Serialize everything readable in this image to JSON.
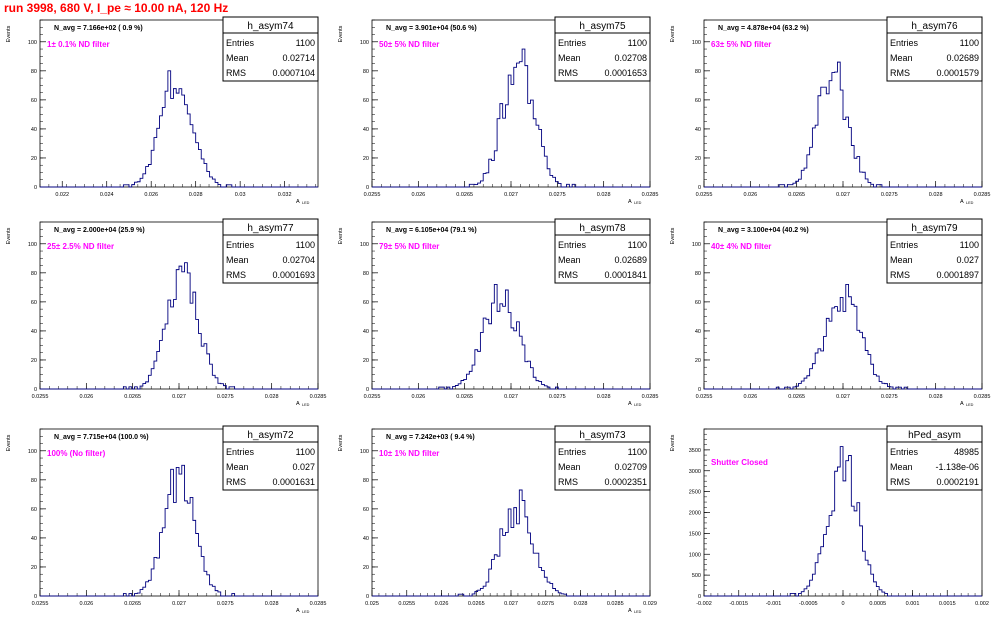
{
  "page_title": "run 3998,   680 V, I_pe ≈ 10.00 nA, 120 Hz",
  "chart_data": [
    {
      "type": "bar",
      "name": "h_asym74",
      "navg": "N_avg = 7.166e+02 ( 0.9 %)",
      "filter": "1± 0.1% ND filter",
      "stats": {
        "Entries": "1100",
        "Mean": "0.02714",
        "RMS": "0.0007104"
      },
      "ylabel": "Events",
      "xlabel": "A_LED",
      "xlim": [
        0.021,
        0.0335
      ],
      "ylim": [
        0,
        115
      ],
      "yticks": [
        0,
        20,
        40,
        60,
        80,
        100
      ],
      "xticks": [
        0.022,
        0.024,
        0.026,
        0.028,
        0.03,
        0.032
      ],
      "xtick_labels": [
        "0.022",
        "0.024",
        "0.026",
        "0.028",
        "0.03",
        "0.032"
      ],
      "values": [
        {
          "center": 0.02714,
          "sigma": 0.00071,
          "peak": 80
        }
      ]
    },
    {
      "type": "bar",
      "name": "h_asym75",
      "navg": "N_avg = 3.901e+04 (50.6 %)",
      "filter": "50± 5% ND filter",
      "stats": {
        "Entries": "1100",
        "Mean": "0.02708",
        "RMS": "0.0001653"
      },
      "ylabel": "Events",
      "xlabel": "A_LED",
      "xlim": [
        0.0255,
        0.0285
      ],
      "ylim": [
        0,
        115
      ],
      "yticks": [
        0,
        20,
        40,
        60,
        80,
        100
      ],
      "xticks": [
        0.0255,
        0.026,
        0.0265,
        0.027,
        0.0275,
        0.028,
        0.0285
      ],
      "xtick_labels": [
        "0.0255",
        "0.026",
        "0.0265",
        "0.027",
        "0.0275",
        "0.028",
        "0.0285"
      ],
      "values": [
        {
          "center": 0.02708,
          "sigma": 0.000165,
          "peak": 95
        }
      ]
    },
    {
      "type": "bar",
      "name": "h_asym76",
      "navg": "N_avg = 4.878e+04 (63.2 %)",
      "filter": "63± 5% ND filter",
      "stats": {
        "Entries": "1100",
        "Mean": "0.02689",
        "RMS": "0.0001579"
      },
      "ylabel": "Events",
      "xlabel": "A_LED",
      "xlim": [
        0.0255,
        0.0285
      ],
      "ylim": [
        0,
        115
      ],
      "yticks": [
        0,
        20,
        40,
        60,
        80,
        100
      ],
      "xticks": [
        0.0255,
        0.026,
        0.0265,
        0.027,
        0.0275,
        0.028,
        0.0285
      ],
      "xtick_labels": [
        "0.0255",
        "0.026",
        "0.0265",
        "0.027",
        "0.0275",
        "0.028",
        "0.0285"
      ],
      "values": [
        {
          "center": 0.02689,
          "sigma": 0.000158,
          "peak": 86
        }
      ]
    },
    {
      "type": "bar",
      "name": "h_asym77",
      "navg": "N_avg = 2.000e+04 (25.9 %)",
      "filter": "25± 2.5% ND filter",
      "stats": {
        "Entries": "1100",
        "Mean": "0.02704",
        "RMS": "0.0001693"
      },
      "ylabel": "Events",
      "xlabel": "A_LED",
      "xlim": [
        0.0255,
        0.0285
      ],
      "ylim": [
        0,
        115
      ],
      "yticks": [
        0,
        20,
        40,
        60,
        80,
        100
      ],
      "xticks": [
        0.0255,
        0.026,
        0.0265,
        0.027,
        0.0275,
        0.028,
        0.0285
      ],
      "xtick_labels": [
        "0.0255",
        "0.026",
        "0.0265",
        "0.027",
        "0.0275",
        "0.028",
        "0.0285"
      ],
      "values": [
        {
          "center": 0.02704,
          "sigma": 0.000169,
          "peak": 87
        }
      ]
    },
    {
      "type": "bar",
      "name": "h_asym78",
      "navg": "N_avg = 6.105e+04 (79.1 %)",
      "filter": "79± 5% ND filter",
      "stats": {
        "Entries": "1100",
        "Mean": "0.02689",
        "RMS": "0.0001841"
      },
      "ylabel": "Events",
      "xlabel": "A_LED",
      "xlim": [
        0.0255,
        0.0285
      ],
      "ylim": [
        0,
        115
      ],
      "yticks": [
        0,
        20,
        40,
        60,
        80,
        100
      ],
      "xticks": [
        0.0255,
        0.026,
        0.0265,
        0.027,
        0.0275,
        0.028,
        0.0285
      ],
      "xtick_labels": [
        "0.0255",
        "0.026",
        "0.0265",
        "0.027",
        "0.0275",
        "0.028",
        "0.0285"
      ],
      "values": [
        {
          "center": 0.02689,
          "sigma": 0.000184,
          "peak": 72
        }
      ]
    },
    {
      "type": "bar",
      "name": "h_asym79",
      "navg": "N_avg = 3.100e+04 (40.2 %)",
      "filter": "40± 4% ND filter",
      "stats": {
        "Entries": "1100",
        "Mean": "0.027",
        "RMS": "0.0001897"
      },
      "ylabel": "Events",
      "xlabel": "A_LED",
      "xlim": [
        0.0255,
        0.0285
      ],
      "ylim": [
        0,
        115
      ],
      "yticks": [
        0,
        20,
        40,
        60,
        80,
        100
      ],
      "xticks": [
        0.0255,
        0.026,
        0.0265,
        0.027,
        0.0275,
        0.028,
        0.0285
      ],
      "xtick_labels": [
        "0.0255",
        "0.026",
        "0.0265",
        "0.027",
        "0.0275",
        "0.028",
        "0.0285"
      ],
      "values": [
        {
          "center": 0.027,
          "sigma": 0.00019,
          "peak": 72
        }
      ]
    },
    {
      "type": "bar",
      "name": "h_asym72",
      "navg": "N_avg = 7.715e+04 (100.0 %)",
      "filter": "100% (No filter)",
      "stats": {
        "Entries": "1100",
        "Mean": "0.027",
        "RMS": "0.0001631"
      },
      "ylabel": "Events",
      "xlabel": "A_LED",
      "xlim": [
        0.0255,
        0.0285
      ],
      "ylim": [
        0,
        115
      ],
      "yticks": [
        0,
        20,
        40,
        60,
        80,
        100
      ],
      "xticks": [
        0.0255,
        0.026,
        0.0265,
        0.027,
        0.0275,
        0.028,
        0.0285
      ],
      "xtick_labels": [
        "0.0255",
        "0.026",
        "0.0265",
        "0.027",
        "0.0275",
        "0.028",
        "0.0285"
      ],
      "values": [
        {
          "center": 0.027,
          "sigma": 0.000163,
          "peak": 90
        }
      ]
    },
    {
      "type": "bar",
      "name": "h_asym73",
      "navg": "N_avg = 7.242e+03 ( 9.4 %)",
      "filter": "10± 1% ND filter",
      "stats": {
        "Entries": "1100",
        "Mean": "0.02709",
        "RMS": "0.0002351"
      },
      "ylabel": "Events",
      "xlabel": "A_LED",
      "xlim": [
        0.025,
        0.029
      ],
      "ylim": [
        0,
        115
      ],
      "yticks": [
        0,
        20,
        40,
        60,
        80,
        100
      ],
      "xticks": [
        0.025,
        0.0255,
        0.026,
        0.0265,
        0.027,
        0.0275,
        0.028,
        0.0285,
        0.029
      ],
      "xtick_labels": [
        "0.025",
        "0.0255",
        "0.026",
        "0.0265",
        "0.027",
        "0.0275",
        "0.028",
        "0.0285",
        "0.029"
      ],
      "values": [
        {
          "center": 0.02709,
          "sigma": 0.000235,
          "peak": 73
        }
      ]
    },
    {
      "type": "bar",
      "name": "hPed_asym",
      "navg": "",
      "filter": "Shutter Closed",
      "stats": {
        "Entries": "48985",
        "Mean": "-1.138e-06",
        "RMS": "0.0002191"
      },
      "ylabel": "Events",
      "xlabel": "",
      "xlim": [
        -0.002,
        0.002
      ],
      "ylim": [
        0,
        4000
      ],
      "yticks": [
        0,
        500,
        1000,
        1500,
        2000,
        2500,
        3000,
        3500
      ],
      "xticks": [
        -0.002,
        -0.0015,
        -0.001,
        -0.0005,
        0,
        0.0005,
        0.001,
        0.0015,
        0.002
      ],
      "xtick_labels": [
        "-0.002",
        "-0.0015",
        "-0.001",
        "-0.0005",
        "0",
        "0.0005",
        "0.001",
        "0.0015",
        "0.002"
      ],
      "values": [
        {
          "center": 0.0,
          "sigma": 0.000219,
          "peak": 3580
        }
      ]
    }
  ],
  "colors": {
    "histogram": "#00007f",
    "filter_text": "#ff00ff",
    "title_text": "#ff0000",
    "frame": "#000000"
  }
}
